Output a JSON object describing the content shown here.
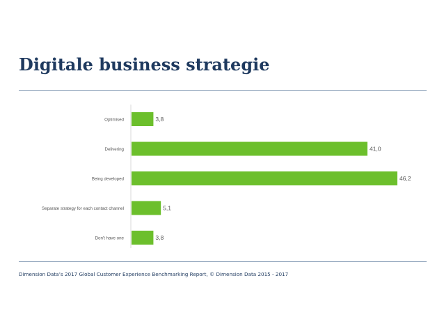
{
  "slide": {
    "title": "Digitale business strategie",
    "footer": "Dimension Data’s 2017 Global Customer Experience Benchmarking Report, © Dimension Data 2015 - 2017"
  },
  "colors": {
    "bar": "#6cbf2c",
    "title": "#1f3a5f",
    "rule": "#8aa0b8",
    "axis": "#d9d9d9",
    "label": "#595959"
  },
  "chart_data": {
    "type": "bar",
    "orientation": "horizontal",
    "categories": [
      "Optimised",
      "Delivering",
      "Being developed",
      "Separate strategy for each contact channel",
      "Don't have one"
    ],
    "values": [
      3.8,
      41.0,
      46.2,
      5.1,
      3.8
    ],
    "value_labels": [
      "3,8",
      "41,0",
      "46,2",
      "5,1",
      "3,8"
    ],
    "title": "",
    "xlabel": "",
    "ylabel": "",
    "xlim": [
      0,
      46.2
    ],
    "grid": false,
    "legend": "none"
  }
}
